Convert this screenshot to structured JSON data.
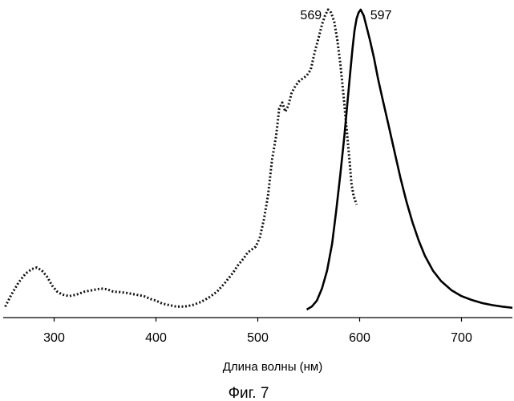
{
  "chart_data": {
    "type": "line",
    "xlabel": "Длина волны (нм)",
    "ylabel": "",
    "caption": "Фиг. 7",
    "xlim": [
      250,
      750
    ],
    "ylim": [
      0,
      1
    ],
    "xticks": [
      300,
      400,
      500,
      600,
      700
    ],
    "grid": false,
    "series": [
      {
        "style": "dotted",
        "color": "#111111",
        "x": [
          252,
          258,
          265,
          272,
          278,
          283,
          288,
          293,
          298,
          303,
          308,
          315,
          322,
          330,
          338,
          346,
          352,
          358,
          365,
          372,
          380,
          388,
          395,
          400,
          406,
          413,
          420,
          428,
          436,
          444,
          452,
          460,
          468,
          475,
          481,
          486,
          490,
          494,
          498,
          502,
          506,
          510,
          514,
          518,
          521,
          524,
          527,
          530,
          533,
          536,
          540,
          544,
          548,
          552,
          556,
          560,
          563,
          566,
          569,
          572,
          575,
          578,
          581,
          584,
          587,
          590,
          592,
          594,
          596,
          597
        ],
        "y": [
          0.01,
          0.05,
          0.09,
          0.12,
          0.135,
          0.14,
          0.13,
          0.11,
          0.08,
          0.06,
          0.05,
          0.045,
          0.05,
          0.06,
          0.065,
          0.07,
          0.068,
          0.06,
          0.058,
          0.055,
          0.05,
          0.045,
          0.035,
          0.03,
          0.02,
          0.015,
          0.01,
          0.01,
          0.015,
          0.025,
          0.04,
          0.06,
          0.09,
          0.12,
          0.15,
          0.17,
          0.19,
          0.2,
          0.21,
          0.24,
          0.3,
          0.38,
          0.5,
          0.58,
          0.67,
          0.69,
          0.66,
          0.68,
          0.72,
          0.74,
          0.76,
          0.77,
          0.78,
          0.8,
          0.86,
          0.91,
          0.95,
          0.98,
          1.0,
          0.99,
          0.96,
          0.9,
          0.82,
          0.72,
          0.61,
          0.5,
          0.42,
          0.38,
          0.36,
          0.35
        ],
        "peak_label": "569"
      },
      {
        "style": "solid",
        "color": "#000000",
        "x": [
          548,
          553,
          558,
          563,
          568,
          573,
          577,
          581,
          585,
          588,
          591,
          593,
          595,
          597,
          599,
          601,
          604,
          607,
          610,
          614,
          618,
          622,
          628,
          634,
          640,
          646,
          652,
          658,
          664,
          672,
          680,
          690,
          700,
          710,
          720,
          730,
          740,
          750
        ],
        "y": [
          0.0,
          0.01,
          0.03,
          0.07,
          0.13,
          0.22,
          0.33,
          0.45,
          0.58,
          0.69,
          0.8,
          0.87,
          0.93,
          0.97,
          0.99,
          1.0,
          0.98,
          0.94,
          0.9,
          0.84,
          0.77,
          0.71,
          0.62,
          0.53,
          0.44,
          0.36,
          0.29,
          0.23,
          0.18,
          0.13,
          0.095,
          0.065,
          0.045,
          0.032,
          0.022,
          0.015,
          0.01,
          0.006
        ],
        "peak_label": "597"
      }
    ]
  }
}
